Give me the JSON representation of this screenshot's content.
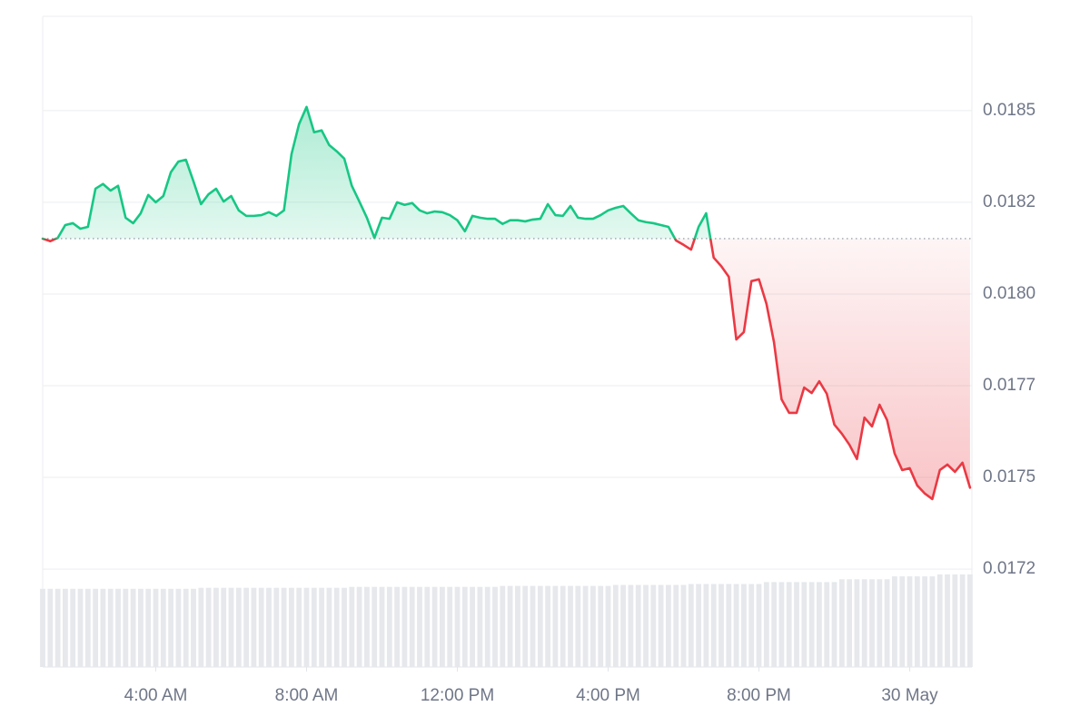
{
  "chart_data": {
    "type": "line",
    "color_up": "#16c784",
    "color_down": "#ea3943",
    "volume_color": "#e6e8ec",
    "baseline": 0.018151,
    "grid": true,
    "xlim": [
      1,
      25.65
    ],
    "ylim": [
      0.016983,
      0.018757
    ],
    "xticks": [
      {
        "value": 4,
        "label": "4:00 AM"
      },
      {
        "value": 8,
        "label": "8:00 AM"
      },
      {
        "value": 12,
        "label": "12:00 PM"
      },
      {
        "value": 16,
        "label": "4:00 PM"
      },
      {
        "value": 20,
        "label": "8:00 PM"
      },
      {
        "value": 24,
        "label": "30 May"
      }
    ],
    "yticks": [
      0.0185,
      {
        "value": 0.01825,
        "label": "0.0182"
      },
      {
        "value": 0.018,
        "label": "0.0180"
      },
      {
        "value": 0.01775,
        "label": "0.0177"
      },
      0.0175,
      {
        "value": 0.01725,
        "label": "0.0172"
      }
    ],
    "x": [
      1,
      1.2,
      1.4,
      1.6,
      1.8,
      2,
      2.2,
      2.4,
      2.6,
      2.8,
      3,
      3.2,
      3.4,
      3.6,
      3.8,
      4,
      4.2,
      4.4,
      4.6,
      4.8,
      5,
      5.2,
      5.4,
      5.6,
      5.8,
      6,
      6.2,
      6.4,
      6.6,
      6.8,
      7,
      7.2,
      7.4,
      7.6,
      7.8,
      8,
      8.2,
      8.4,
      8.6,
      8.8,
      9,
      9.2,
      9.4,
      9.6,
      9.8,
      10,
      10.2,
      10.4,
      10.6,
      10.8,
      11,
      11.2,
      11.4,
      11.6,
      11.8,
      12,
      12.2,
      12.4,
      12.6,
      12.8,
      13,
      13.2,
      13.4,
      13.6,
      13.8,
      14,
      14.2,
      14.4,
      14.6,
      14.8,
      15,
      15.2,
      15.4,
      15.6,
      15.8,
      16,
      16.2,
      16.4,
      16.6,
      16.8,
      17,
      17.2,
      17.4,
      17.6,
      17.8,
      18,
      18.2,
      18.4,
      18.6,
      18.8,
      19,
      19.2,
      19.4,
      19.6,
      19.8,
      20,
      20.2,
      20.4,
      20.6,
      20.8,
      21,
      21.2,
      21.4,
      21.6,
      21.8,
      22,
      22.2,
      22.4,
      22.6,
      22.8,
      23,
      23.2,
      23.4,
      23.6,
      23.8,
      24,
      24.2,
      24.4,
      24.6,
      24.8,
      25,
      25.2,
      25.4,
      25.6
    ],
    "values": [
      0.018151,
      0.018144,
      0.018153,
      0.018188,
      0.018193,
      0.018178,
      0.018183,
      0.018287,
      0.0183,
      0.018282,
      0.018295,
      0.018208,
      0.018193,
      0.01822,
      0.01827,
      0.01825,
      0.018267,
      0.018332,
      0.018361,
      0.018366,
      0.018307,
      0.018245,
      0.018272,
      0.018287,
      0.018252,
      0.018267,
      0.018228,
      0.018213,
      0.018213,
      0.018215,
      0.018223,
      0.018213,
      0.018228,
      0.018381,
      0.018463,
      0.01851,
      0.018441,
      0.018446,
      0.018406,
      0.018389,
      0.018369,
      0.018295,
      0.018252,
      0.018208,
      0.018153,
      0.018208,
      0.018205,
      0.01825,
      0.018243,
      0.018248,
      0.018228,
      0.01822,
      0.018225,
      0.018223,
      0.018215,
      0.018201,
      0.018171,
      0.018213,
      0.018208,
      0.018205,
      0.018205,
      0.018191,
      0.018201,
      0.018201,
      0.018198,
      0.018203,
      0.018205,
      0.018245,
      0.018215,
      0.018213,
      0.01824,
      0.018208,
      0.018205,
      0.018205,
      0.018215,
      0.018228,
      0.018235,
      0.01824,
      0.01822,
      0.018201,
      0.018196,
      0.018193,
      0.018188,
      0.018183,
      0.018146,
      0.018134,
      0.018121,
      0.018183,
      0.01822,
      0.018099,
      0.018076,
      0.018047,
      0.017876,
      0.017896,
      0.018035,
      0.01804,
      0.017973,
      0.017868,
      0.017713,
      0.017676,
      0.017676,
      0.017745,
      0.01773,
      0.017762,
      0.017728,
      0.017644,
      0.017619,
      0.017589,
      0.01755,
      0.017663,
      0.017639,
      0.017698,
      0.017656,
      0.017565,
      0.01752,
      0.017525,
      0.017478,
      0.017456,
      0.017441,
      0.01752,
      0.017535,
      0.017515,
      0.01754,
      0.017472
    ],
    "volume": [
      82,
      82,
      82,
      82,
      82,
      82,
      82,
      82,
      82,
      82,
      82,
      82,
      82,
      82,
      82,
      82,
      82,
      82,
      82,
      82,
      82,
      83,
      83,
      83,
      83,
      83,
      83,
      83,
      83,
      83,
      83,
      83,
      83,
      83,
      83,
      83,
      83,
      83,
      83,
      83,
      83,
      84,
      84,
      84,
      84,
      84,
      84,
      84,
      84,
      84,
      84,
      84,
      84,
      84,
      84,
      84,
      84,
      84,
      84,
      84,
      84,
      85,
      85,
      85,
      85,
      85,
      85,
      85,
      85,
      85,
      85,
      85,
      85,
      85,
      85,
      85,
      86,
      86,
      86,
      86,
      86,
      86,
      86,
      86,
      86,
      86,
      87,
      87,
      87,
      87,
      87,
      87,
      87,
      87,
      87,
      87,
      89,
      89,
      89,
      89,
      89,
      89,
      89,
      89,
      89,
      89,
      92,
      92,
      92,
      92,
      92,
      92,
      92,
      95,
      95,
      95,
      95,
      95,
      95,
      97,
      97,
      97,
      97,
      97
    ]
  }
}
